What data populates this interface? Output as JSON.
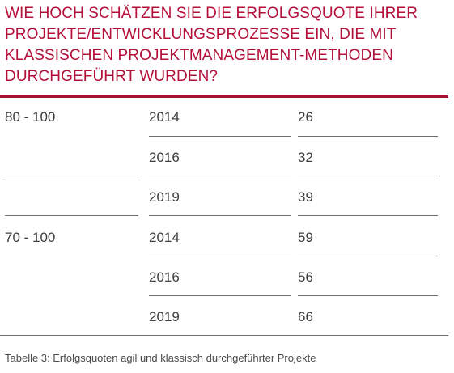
{
  "title_lines": [
    "WIE HOCH SCHÄTZEN SIE DIE ERFOLGSQUOTE IHRER",
    "PROJEKTE/ENTWICKLUNGSPROZESSE EIN, DIE MIT",
    "KLASSISCHEN PROJEKTMANAGEMENT-METHODEN",
    "DURCHGEFÜHRT WURDEN?"
  ],
  "rows": [
    {
      "range": "80 - 100",
      "year": "2014",
      "value": "26"
    },
    {
      "range": "",
      "year": "2016",
      "value": "32"
    },
    {
      "range": "",
      "year": "2019",
      "value": "39"
    },
    {
      "range": "70 - 100",
      "year": "2014",
      "value": "59"
    },
    {
      "range": "",
      "year": "2016",
      "value": "56"
    },
    {
      "range": "",
      "year": "2019",
      "value": "66"
    }
  ],
  "caption": "Tabelle 3: Erfolgsquoten agil und klassisch durchgeführter Projekte",
  "colors": {
    "accent": "#b3103a",
    "rule": "#a31434"
  }
}
